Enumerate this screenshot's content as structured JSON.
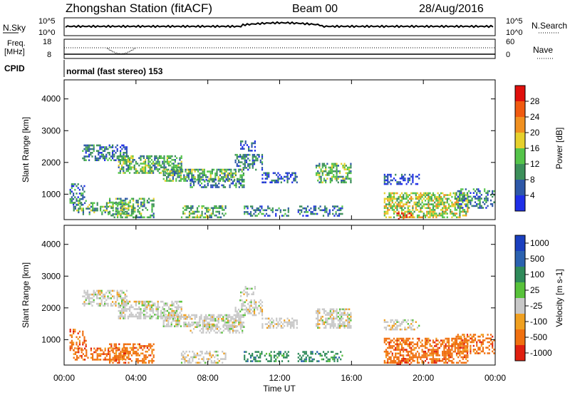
{
  "header": {
    "station": "Zhongshan Station (fitACF)",
    "beam": "Beam 00",
    "date": "28/Aug/2016"
  },
  "top_panels": {
    "nsky_label": "N.Sky",
    "nsearch_label": "N.Search",
    "nsky_ticks": [
      "10^5",
      "10^0"
    ],
    "nsearch_ticks": [
      "10^5",
      "10^0"
    ],
    "freq_label_1": "Freq.",
    "freq_label_2": "[MHz]",
    "freq_ticks": [
      "18",
      "8"
    ],
    "nave_label": "Nave",
    "nave_ticks": [
      "60",
      "0"
    ],
    "cpid_label": "CPID",
    "cpid_text": "normal (fast stereo) 153"
  },
  "chart_data": [
    {
      "type": "heatmap",
      "name": "power",
      "ylabel": "Slant Range [km]",
      "y_ticks": [
        "1000",
        "2000",
        "3000",
        "4000"
      ],
      "ylim": [
        200,
        4600
      ],
      "colorbar_title": "Power [dB]",
      "colorbar_ticks": [
        "4",
        "8",
        "12",
        "16",
        "20",
        "24",
        "28"
      ],
      "colors": [
        "#1f2fe8",
        "#2e58a8",
        "#3c8f5a",
        "#55c44a",
        "#e6d02c",
        "#f09020",
        "#f05a10",
        "#e0100c"
      ]
    },
    {
      "type": "heatmap",
      "name": "velocity",
      "ylabel": "Slant Range [km]",
      "y_ticks": [
        "1000",
        "2000",
        "3000",
        "4000"
      ],
      "ylim": [
        200,
        4600
      ],
      "colorbar_title": "Velocity [m s-1]",
      "colorbar_ticks": [
        "1000",
        "500",
        "100",
        "25",
        "-25",
        "-100",
        "-500",
        "-1000"
      ],
      "colors": [
        "#1a3fbf",
        "#2b62b0",
        "#2f8a5a",
        "#58c23a",
        "#c8c8c8",
        "#f0a020",
        "#f07010",
        "#e02010"
      ]
    }
  ],
  "x_axis": {
    "ticks": [
      "00:00",
      "04:00",
      "08:00",
      "12:00",
      "16:00",
      "20:00",
      "00:00"
    ],
    "xlabel": "Time UT"
  }
}
